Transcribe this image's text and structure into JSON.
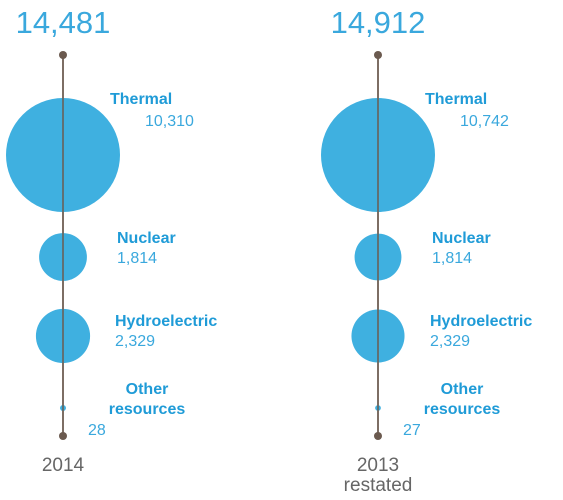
{
  "chart_data": [
    {
      "type": "bubble",
      "total": 14481,
      "total_label": "14,481",
      "period": "2014",
      "categories": [
        "Thermal",
        "Nuclear",
        "Hydroelectric",
        "Other resources"
      ],
      "values": [
        10310,
        1814,
        2329,
        28
      ],
      "value_labels": [
        "10,310",
        "1,814",
        "2,329",
        "28"
      ],
      "color": "#3fb0e0"
    },
    {
      "type": "bubble",
      "total": 14912,
      "total_label": "14,912",
      "period": "2013",
      "period_note": "restated",
      "categories": [
        "Thermal",
        "Nuclear",
        "Hydroelectric",
        "Other resources"
      ],
      "values": [
        10742,
        1814,
        2329,
        27
      ],
      "value_labels": [
        "10,742",
        "1,814",
        "2,329",
        "27"
      ],
      "color": "#3fb0e0"
    }
  ]
}
